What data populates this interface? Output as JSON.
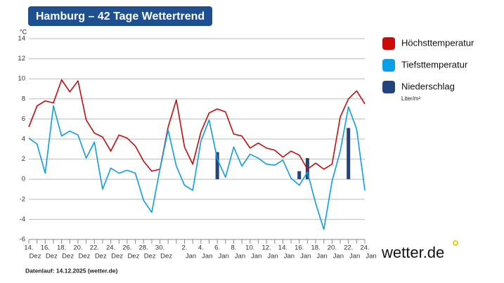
{
  "chart_data": {
    "type": "line",
    "title": "Hamburg – 42 Tage Wettertrend",
    "y_unit": "°C",
    "footer": "Datenlauf: 14.12.2025 (wetter.de)",
    "logo": "wetter.de",
    "precip_unit": "Liter/m²",
    "categories": [
      "14.",
      null,
      "16.",
      null,
      "18.",
      null,
      "20.",
      null,
      "22.",
      null,
      "24.",
      null,
      "26.",
      null,
      "28.",
      null,
      "30.",
      null,
      null,
      "2.",
      null,
      "4.",
      null,
      "6.",
      null,
      "8.",
      null,
      "10.",
      null,
      "12.",
      null,
      "14.",
      null,
      "16.",
      null,
      "18.",
      null,
      "20.",
      null,
      "22.",
      null,
      "24."
    ],
    "months": [
      "Dez",
      null,
      "Dez",
      null,
      "Dez",
      null,
      "Dez",
      null,
      "Dez",
      null,
      "Dez",
      null,
      "Dez",
      null,
      "Dez",
      null,
      "Dez",
      null,
      null,
      "Jan",
      null,
      "Jan",
      null,
      "Jan",
      null,
      "Jan",
      null,
      "Jan",
      null,
      "Jan",
      null,
      "Jan",
      null,
      "Jan",
      null,
      "Jan",
      null,
      "Jan",
      null,
      "Jan",
      null,
      "Jan"
    ],
    "series": [
      {
        "name": "Höchsttemperatur",
        "color": "#cc0a0a",
        "mark": "line",
        "values": [
          5.2,
          7.3,
          7.8,
          7.6,
          9.9,
          8.7,
          9.8,
          5.9,
          4.6,
          4.2,
          2.8,
          4.4,
          4.1,
          3.3,
          1.8,
          0.8,
          1.0,
          5.2,
          7.9,
          3.2,
          1.5,
          4.7,
          6.6,
          7.0,
          6.7,
          4.5,
          4.3,
          3.1,
          3.6,
          3.1,
          2.9,
          2.2,
          2.8,
          2.4,
          1.0,
          1.6,
          1.0,
          1.5,
          6.2,
          8.0,
          8.8,
          7.5
        ]
      },
      {
        "name": "Tiefsttemperatur",
        "color": "#0a9fe6",
        "mark": "line",
        "values": [
          4.1,
          3.5,
          0.6,
          7.3,
          4.3,
          4.8,
          4.4,
          2.1,
          3.7,
          -1.0,
          1.1,
          0.6,
          0.9,
          0.6,
          -2.1,
          -3.3,
          1.0,
          4.9,
          1.3,
          -0.6,
          -1.1,
          3.8,
          5.9,
          2.0,
          0.2,
          3.2,
          1.3,
          2.5,
          2.1,
          1.5,
          1.4,
          1.9,
          0.1,
          -0.6,
          0.7,
          -2.4,
          -5.0,
          -0.2,
          2.8,
          7.2,
          5.0,
          -1.1
        ]
      },
      {
        "name": "Niederschlag",
        "color": "#24437e",
        "mark": "bar",
        "values": [
          null,
          null,
          null,
          null,
          null,
          null,
          null,
          null,
          null,
          null,
          null,
          null,
          null,
          null,
          null,
          null,
          null,
          null,
          null,
          null,
          null,
          null,
          null,
          2.7,
          null,
          null,
          null,
          null,
          null,
          null,
          null,
          null,
          null,
          0.8,
          2.1,
          null,
          null,
          null,
          null,
          5.1,
          null,
          null
        ]
      }
    ],
    "ylim": [
      -6,
      14
    ],
    "yticks": [
      -6,
      -4,
      -2,
      0,
      2,
      4,
      6,
      8,
      10,
      12,
      14
    ],
    "grid": true
  }
}
